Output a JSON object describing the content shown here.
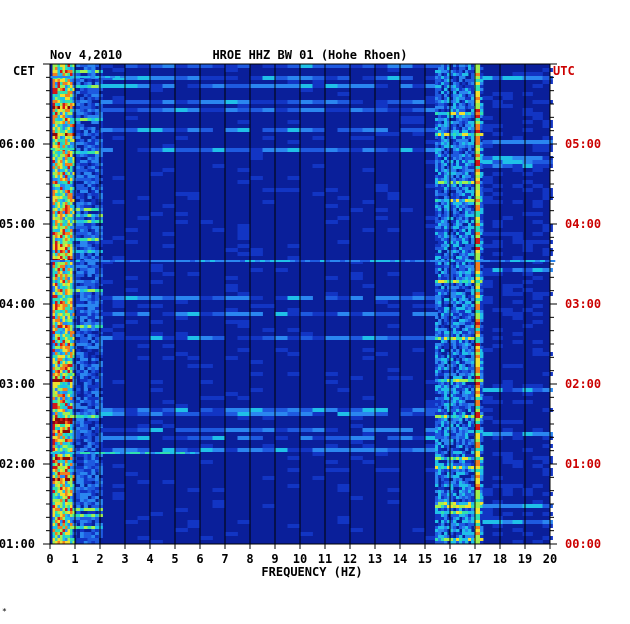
{
  "chart_data": {
    "type": "heatmap",
    "date": "Nov 4,2010",
    "station": "HROE HHZ BW 01 (Hohe Rhoen)",
    "xlabel": "FREQUENCY (HZ)",
    "left_axis_label": "CET",
    "right_axis_label": "UTC",
    "xlim": [
      0,
      20
    ],
    "x_ticks": [
      "0",
      "1",
      "2",
      "3",
      "4",
      "5",
      "6",
      "7",
      "8",
      "9",
      "10",
      "11",
      "12",
      "13",
      "14",
      "15",
      "16",
      "17",
      "18",
      "19",
      "20"
    ],
    "time_range_cet": [
      "01:00",
      "07:00"
    ],
    "cet_ticks": [
      {
        "label": "01:00",
        "hour": 1
      },
      {
        "label": "02:00",
        "hour": 2
      },
      {
        "label": "03:00",
        "hour": 3
      },
      {
        "label": "04:00",
        "hour": 4
      },
      {
        "label": "05:00",
        "hour": 5
      },
      {
        "label": "06:00",
        "hour": 6
      }
    ],
    "utc_ticks": [
      {
        "label": "00:00",
        "hour": 1
      },
      {
        "label": "01:00",
        "hour": 2
      },
      {
        "label": "02:00",
        "hour": 3
      },
      {
        "label": "03:00",
        "hour": 4
      },
      {
        "label": "04:00",
        "hour": 5
      },
      {
        "label": "05:00",
        "hour": 6
      }
    ],
    "grid": true,
    "colors": {
      "background": "#0a1f9a",
      "gridline": "#000000",
      "utc_text": "#cc0000",
      "axis_text": "#000000"
    },
    "energy_bands_hz": [
      {
        "range": [
          0.1,
          0.9
        ],
        "intensity": "high"
      },
      {
        "range": [
          0.9,
          2.0
        ],
        "intensity": "medium"
      },
      {
        "range": [
          15.4,
          17.3
        ],
        "intensity": "medium-high"
      },
      {
        "range": [
          17.0,
          17.2
        ],
        "intensity": "persistent-line"
      }
    ]
  },
  "footer": {
    "mark": "*"
  }
}
